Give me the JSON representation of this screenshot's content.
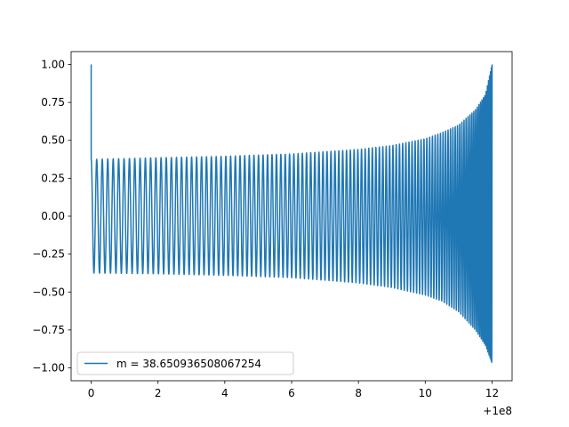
{
  "chart_data": {
    "type": "line",
    "title": "",
    "xlabel": "",
    "ylabel": "",
    "x_offset_label": "+1e8",
    "xlim": [
      -0.6,
      12.6
    ],
    "ylim": [
      -1.085,
      1.085
    ],
    "x_ticks": [
      0,
      2,
      4,
      6,
      8,
      10,
      12
    ],
    "x_tick_labels": [
      "0",
      "2",
      "4",
      "6",
      "8",
      "10",
      "12"
    ],
    "y_ticks": [
      1.0,
      0.75,
      0.5,
      0.25,
      0.0,
      -0.25,
      -0.5,
      -0.75,
      -1.0
    ],
    "y_tick_labels": [
      "1.00",
      "0.75",
      "0.50",
      "0.25",
      "0.00",
      "−0.25",
      "−0.50",
      "−0.75",
      "−1.00"
    ],
    "grid": false,
    "legend": {
      "position": "lower-left"
    },
    "series": [
      {
        "name": "m = 38.650936508067254",
        "color": "#1f77b4",
        "x_start": 0,
        "x_end": 12,
        "initial_value": 1.0,
        "envelope_x": [
          0.1,
          2,
          4,
          6,
          8,
          9,
          10,
          10.5,
          11,
          11.5,
          11.8,
          12
        ],
        "envelope_y": [
          0.375,
          0.385,
          0.395,
          0.41,
          0.44,
          0.465,
          0.51,
          0.55,
          0.6,
          0.7,
          0.8,
          1.0
        ],
        "lower_envelope_y": [
          -0.375,
          -0.38,
          -0.39,
          -0.405,
          -0.44,
          -0.47,
          -0.52,
          -0.56,
          -0.63,
          -0.75,
          -0.85,
          -0.97
        ]
      }
    ]
  }
}
